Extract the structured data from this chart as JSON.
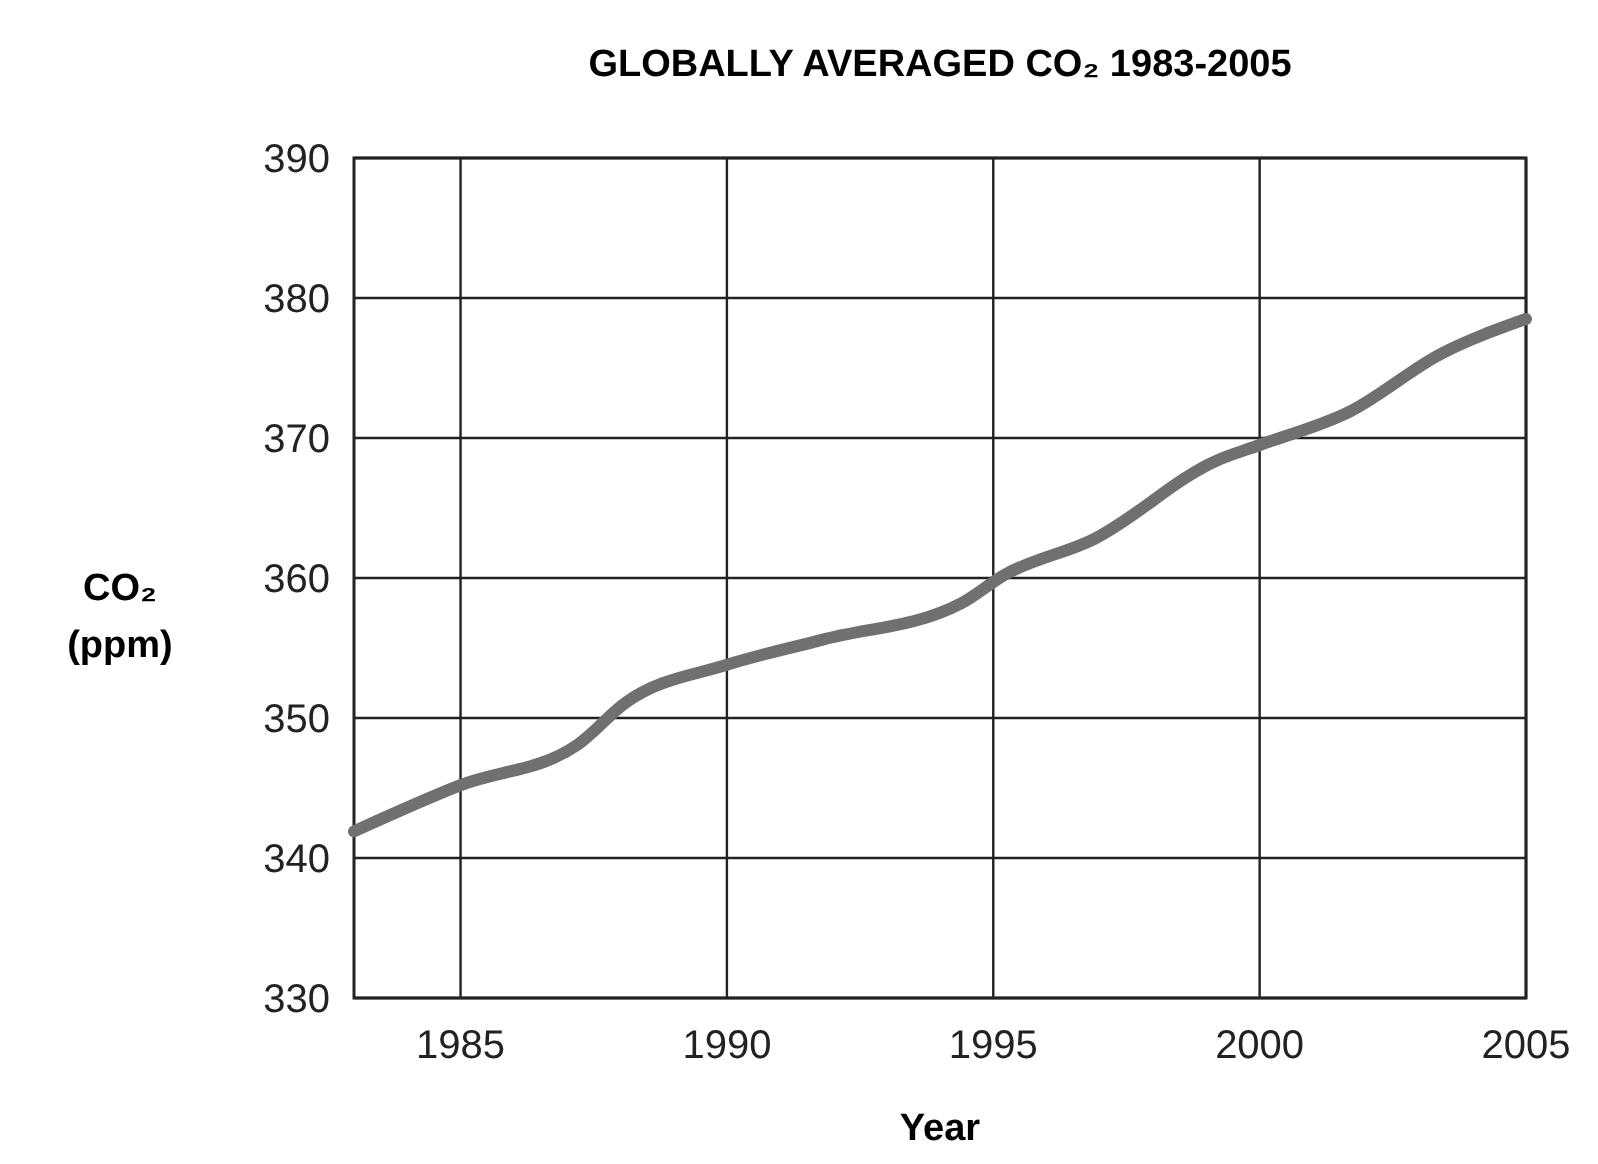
{
  "chart_data": {
    "type": "line",
    "title": "GLOBALLY AVERAGED CO₂ 1983-2005",
    "xlabel": "Year",
    "ylabel": "CO₂ (ppm)",
    "x": [
      1983,
      1985,
      1987.2,
      1988.1,
      1990,
      1991.8,
      1994.4,
      1995.2,
      1996.9,
      1999.2,
      2000,
      2001.7,
      2003.4,
      2005
    ],
    "series": [
      {
        "color": "#707070",
        "values": [
          341.9,
          345.2,
          348.1,
          351.1,
          353.8,
          355.6,
          358.2,
          360.2,
          362.8,
          368.4,
          369.5,
          371.9,
          376,
          378.5
        ]
      }
    ],
    "xlim": [
      1983,
      2005
    ],
    "xticks": [
      1985,
      1990,
      1995,
      2000,
      2005
    ],
    "ylim": [
      330,
      390
    ],
    "yticks": [
      330,
      340,
      350,
      360,
      370,
      380,
      390
    ],
    "grid": true,
    "marker": "none",
    "line_style": "solid"
  }
}
